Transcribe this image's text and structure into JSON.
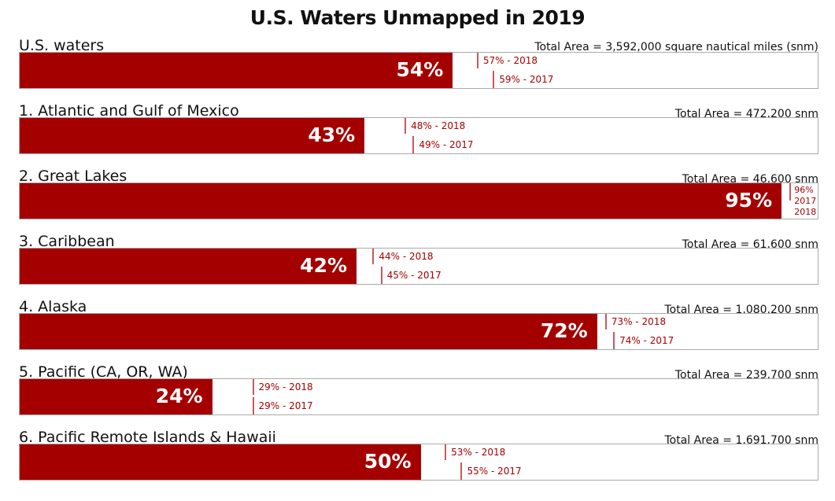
{
  "chart_data": {
    "type": "bar",
    "orientation": "horizontal",
    "title": "U.S. Waters Unmapped in 2019",
    "xlim": [
      0,
      100
    ],
    "unit": "%",
    "colors": {
      "bar": "#a50000",
      "marker": "#c85a5a",
      "label": "#a50000"
    },
    "categories": [
      {
        "label": "U.S. waters",
        "area": "Total Area = 3,592,000 square nautical miles (snm)",
        "value": 54,
        "value_label": "54%",
        "y2018": 57,
        "y2017": 59,
        "label2018": "57% - 2018",
        "label2017": "59% - 2017"
      },
      {
        "label": "1. Atlantic and Gulf of Mexico",
        "area": "Total Area = 472,200 snm",
        "value": 43,
        "value_label": "43%",
        "y2018": 48,
        "y2017": 49,
        "label2018": "48% - 2018",
        "label2017": "49% - 2017"
      },
      {
        "label": "2. Great Lakes",
        "area": "Total Area = 46,600 snm",
        "value": 95,
        "value_label": "95%",
        "y2018": 96,
        "y2017": 96,
        "combined_labels": [
          "96%",
          "2017",
          "2018"
        ]
      },
      {
        "label": "3. Caribbean",
        "area": "Total Area = 61,600 snm",
        "value": 42,
        "value_label": "42%",
        "y2018": 44,
        "y2017": 45,
        "label2018": "44% - 2018",
        "label2017": "45% - 2017"
      },
      {
        "label": "4. Alaska",
        "area": "Total Area = 1,080,200 snm",
        "value": 72,
        "value_label": "72%",
        "y2018": 73,
        "y2017": 74,
        "label2018": "73% - 2018",
        "label2017": "74% - 2017"
      },
      {
        "label": "5. Pacific (CA, OR, WA)",
        "area": "Total Area = 239,700 snm",
        "value": 24,
        "value_label": "24%",
        "y2018": 29,
        "y2017": 29,
        "label2018": "29% - 2018",
        "label2017": "29% - 2017"
      },
      {
        "label": "6. Pacific Remote Islands & Hawaii",
        "area": "Total Area = 1,691,700 snm",
        "value": 50,
        "value_label": "50%",
        "y2018": 53,
        "y2017": 55,
        "label2018": "53% - 2018",
        "label2017": "55% - 2017"
      }
    ]
  }
}
